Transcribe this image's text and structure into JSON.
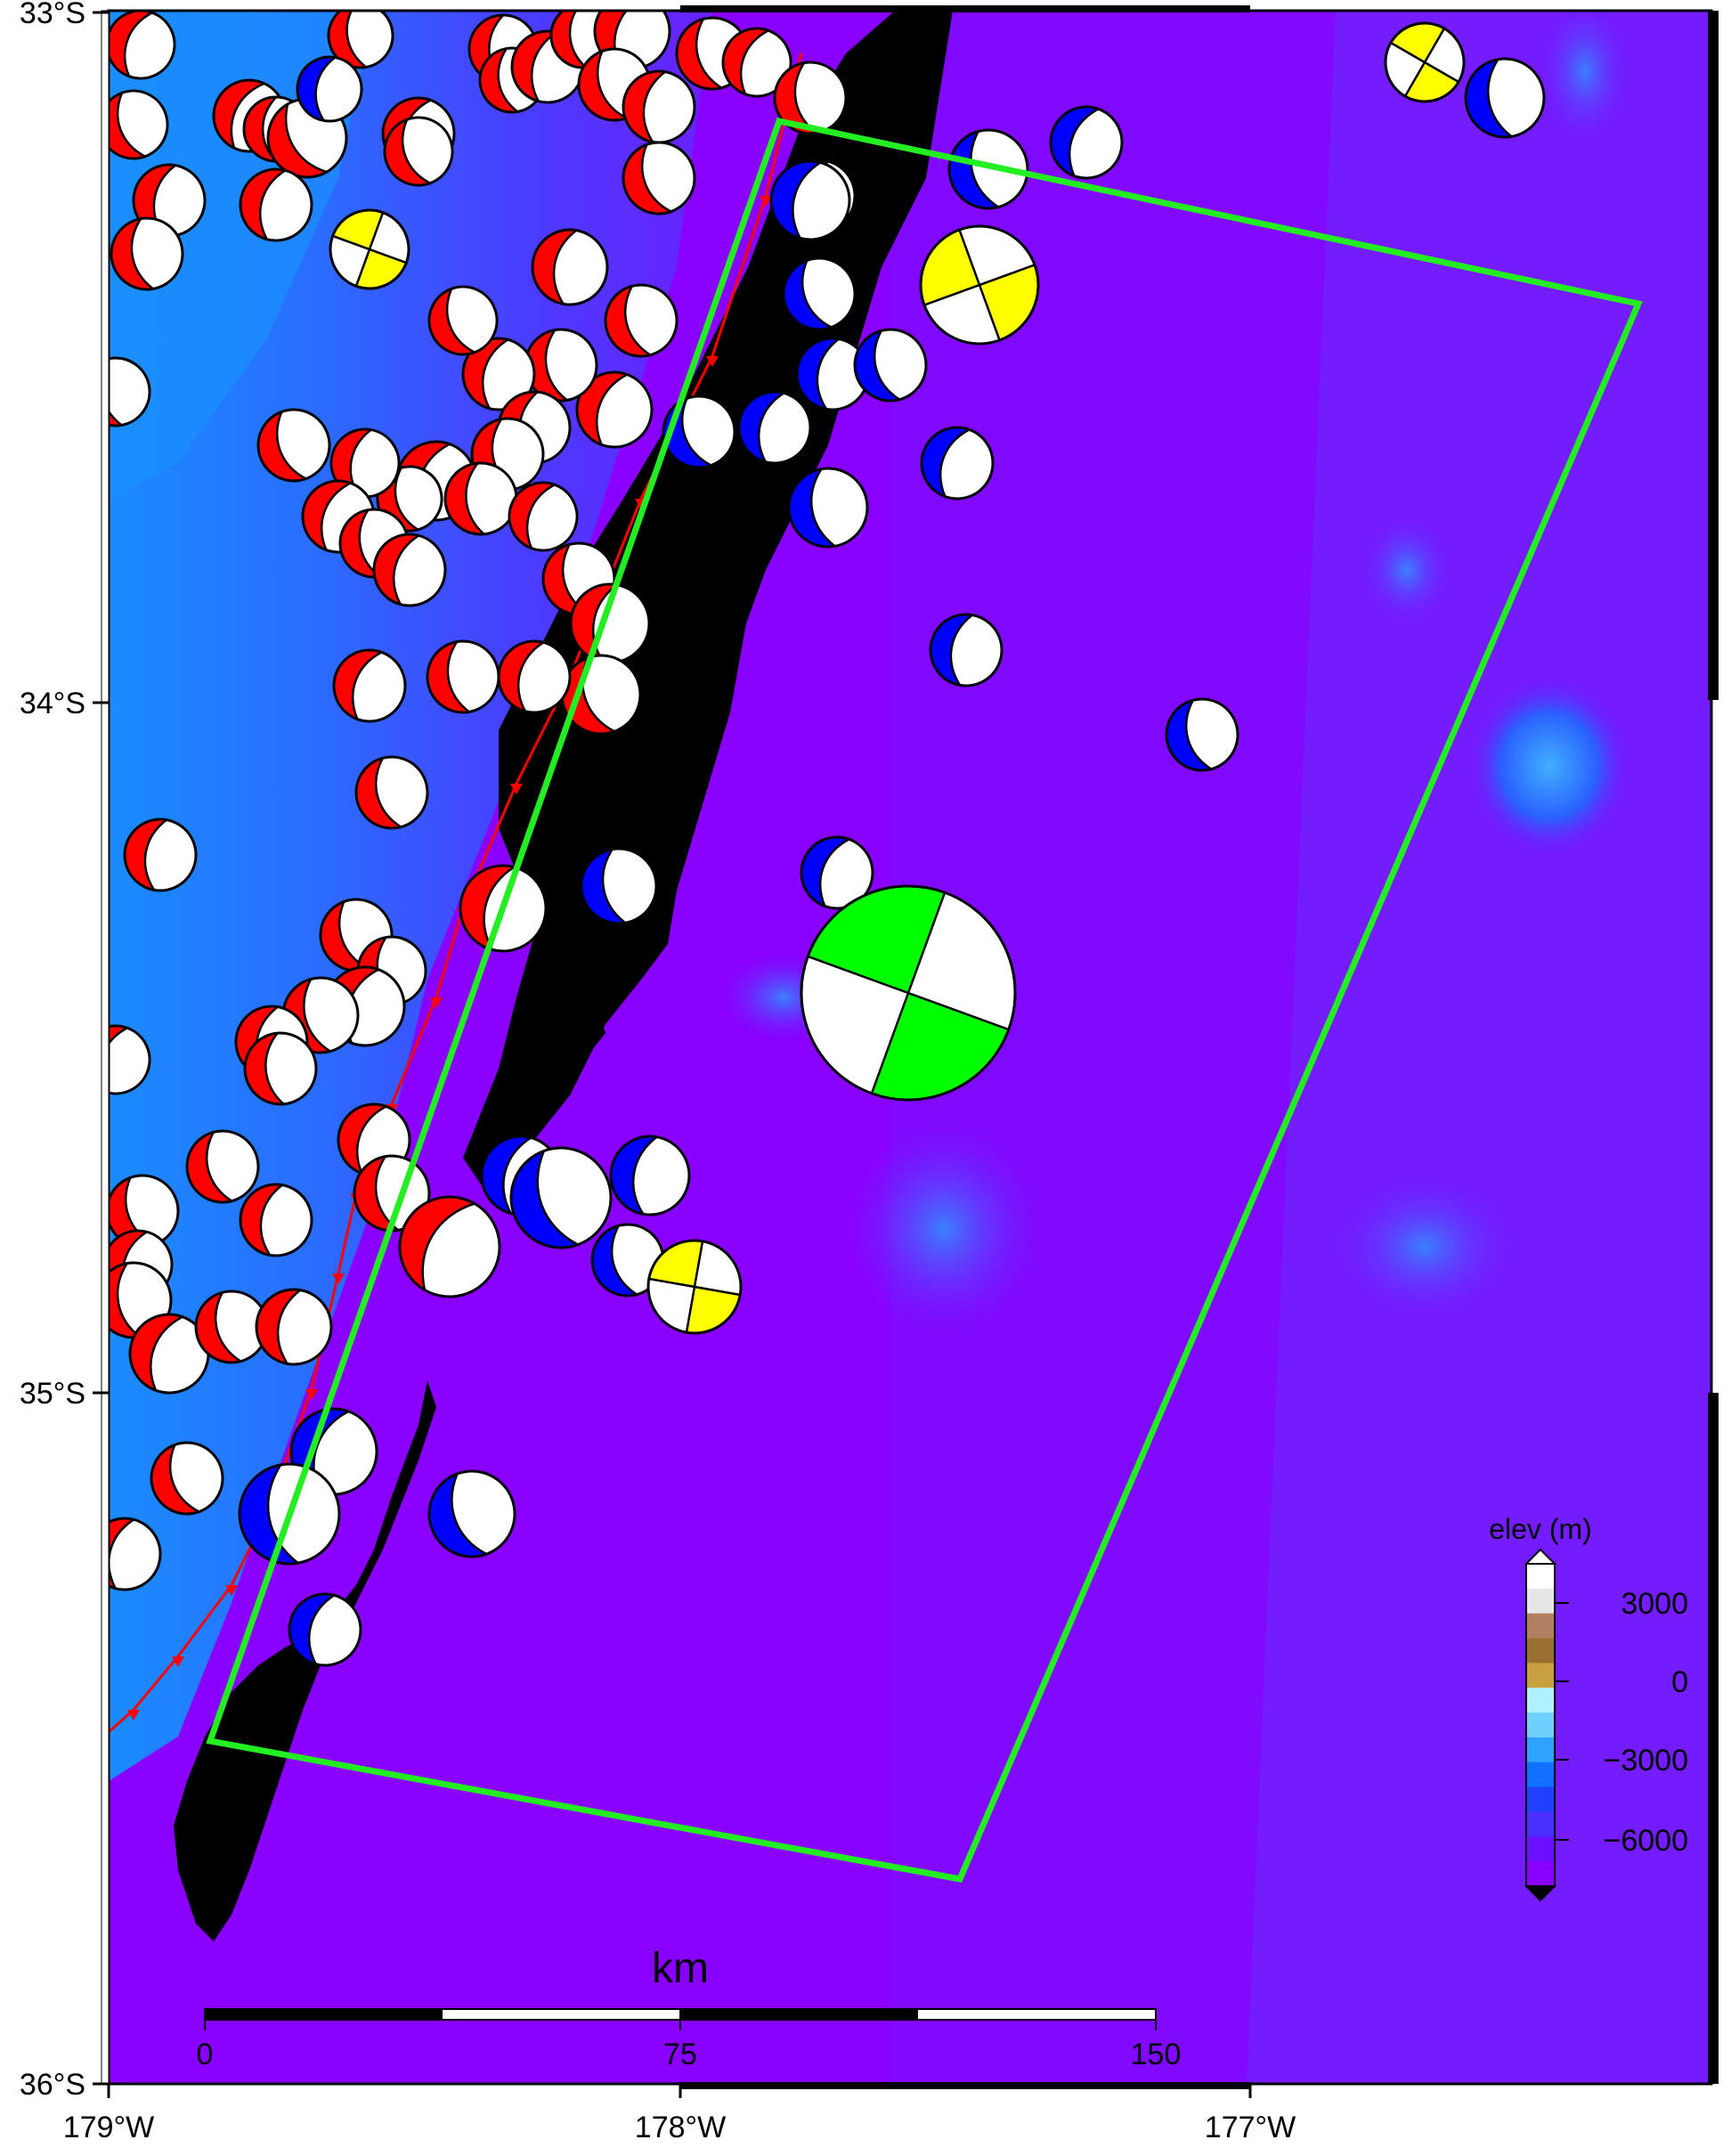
{
  "map": {
    "frame": {
      "lat_labels": [
        "33°S",
        "34°S",
        "35°S",
        "36°S"
      ],
      "lon_labels": [
        "179°W",
        "178°W",
        "177°W"
      ]
    },
    "colors": {
      "land": "#000000",
      "deep_ocean": "#8a00ff",
      "mid_ocean": "#5a3bff",
      "shallow_ocean": "#2aa0ff",
      "focal_red": "#ff0000",
      "focal_blue": "#0000ff",
      "focal_yellow": "#ffff00",
      "focal_green": "#00ff00",
      "box": "#22ee22",
      "trench": "#ff0000"
    },
    "scale_bar": {
      "title": "km",
      "ticks": [
        "0",
        "75",
        "150"
      ]
    },
    "colorbar": {
      "title": "elev (m)",
      "ticks": [
        "3000",
        "0",
        "−3000",
        "−6000"
      ],
      "colors": [
        "#ffffff",
        "#e6e6e6",
        "#b08060",
        "#9a7030",
        "#c8a040",
        "#b0f0ff",
        "#70d0ff",
        "#30a0ff",
        "#1070ff",
        "#2040ff",
        "#4a30ff",
        "#6a10ff",
        "#8a00ff"
      ]
    },
    "focal_mechanism_counts": {
      "red": 66,
      "blue": 22,
      "yellow": 4,
      "green": 1
    }
  }
}
